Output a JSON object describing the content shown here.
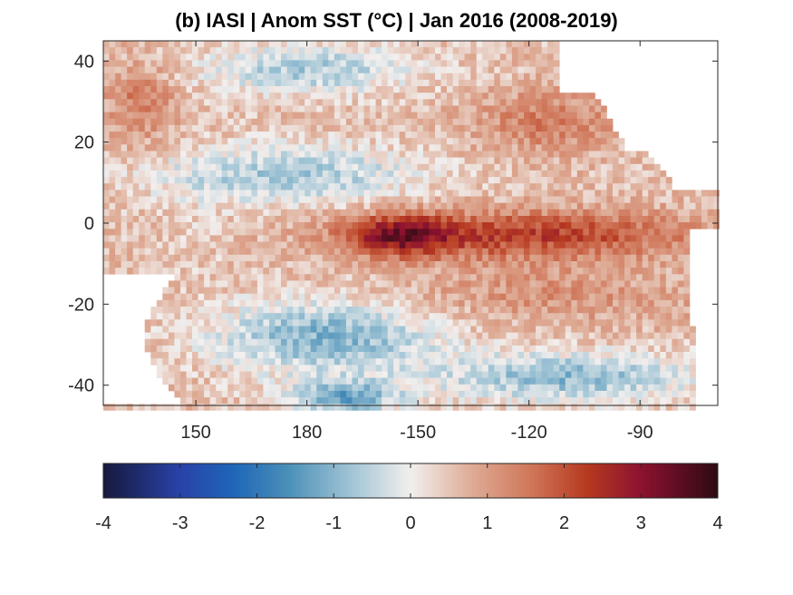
{
  "chart_data": {
    "type": "heatmap",
    "title": "(b) IASI | Anom SST (°C) | Jan 2016 (2008-2019)",
    "xlabel": "",
    "ylabel": "",
    "x_ticks": [
      {
        "value": 150,
        "label": "150"
      },
      {
        "value": 180,
        "label": "180"
      },
      {
        "value": 210,
        "label": "-150"
      },
      {
        "value": 240,
        "label": "-120"
      },
      {
        "value": 270,
        "label": "-90"
      }
    ],
    "y_ticks": [
      {
        "value": 40,
        "label": "40"
      },
      {
        "value": 20,
        "label": "20"
      },
      {
        "value": 0,
        "label": "0"
      },
      {
        "value": -20,
        "label": "-20"
      },
      {
        "value": -40,
        "label": "-40"
      }
    ],
    "xlim": [
      125,
      291
    ],
    "ylim": [
      -45,
      45
    ],
    "colorbar": {
      "min": -4,
      "max": 4,
      "ticks": [
        "-4",
        "-3",
        "-2",
        "-1",
        "0",
        "1",
        "2",
        "3",
        "4"
      ],
      "stops": [
        {
          "v": -4,
          "color": "#161a3c"
        },
        {
          "v": -3,
          "color": "#2942a8"
        },
        {
          "v": -2.3,
          "color": "#1f66b8"
        },
        {
          "v": -1.6,
          "color": "#4a8fb8"
        },
        {
          "v": -0.8,
          "color": "#9ec3d4"
        },
        {
          "v": 0,
          "color": "#f2efee"
        },
        {
          "v": 0.8,
          "color": "#deab95"
        },
        {
          "v": 1.6,
          "color": "#cf7457"
        },
        {
          "v": 2.3,
          "color": "#b6391f"
        },
        {
          "v": 3,
          "color": "#8c1230"
        },
        {
          "v": 4,
          "color": "#2e0a12"
        }
      ]
    },
    "features": [
      {
        "name": "equatorial-el-nino-warm-tongue",
        "lon": [
          185,
          290
        ],
        "lat": [
          -10,
          5
        ],
        "anomaly": 2.2
      },
      {
        "name": "central-pacific-peak",
        "lon": [
          190,
          220
        ],
        "lat": [
          -8,
          3
        ],
        "anomaly": 3.8
      },
      {
        "name": "north-pacific-cool-band",
        "lon": [
          135,
          215
        ],
        "lat": [
          0,
          25
        ],
        "anomaly": -0.8
      },
      {
        "name": "south-pacific-cool-band",
        "lon": [
          160,
          280
        ],
        "lat": [
          -45,
          -15
        ],
        "anomaly": -1.5
      },
      {
        "name": "subtropical-south-warm-band",
        "lon": [
          200,
          290
        ],
        "lat": [
          -30,
          -10
        ],
        "anomaly": 1.2
      },
      {
        "name": "northeast-pacific-warm",
        "lon": [
          220,
          265
        ],
        "lat": [
          15,
          35
        ],
        "anomaly": 1.5
      },
      {
        "name": "north-pacific-cool",
        "lon": [
          150,
          210
        ],
        "lat": [
          30,
          45
        ],
        "anomaly": -1.2
      },
      {
        "name": "northwest-pacific-warm",
        "lon": [
          125,
          150
        ],
        "lat": [
          20,
          45
        ],
        "anomaly": 1.6
      }
    ],
    "land_mask": [
      {
        "name": "australia",
        "lon": [
          125,
          155
        ],
        "lat": [
          -45,
          -10
        ]
      },
      {
        "name": "north-america",
        "lon": [
          245,
          291
        ],
        "lat": [
          30,
          45
        ]
      },
      {
        "name": "central-america",
        "lon": [
          260,
          291
        ],
        "lat": [
          10,
          30
        ]
      },
      {
        "name": "south-america",
        "lon": [
          281,
          291
        ],
        "lat": [
          -45,
          0
        ]
      }
    ]
  }
}
